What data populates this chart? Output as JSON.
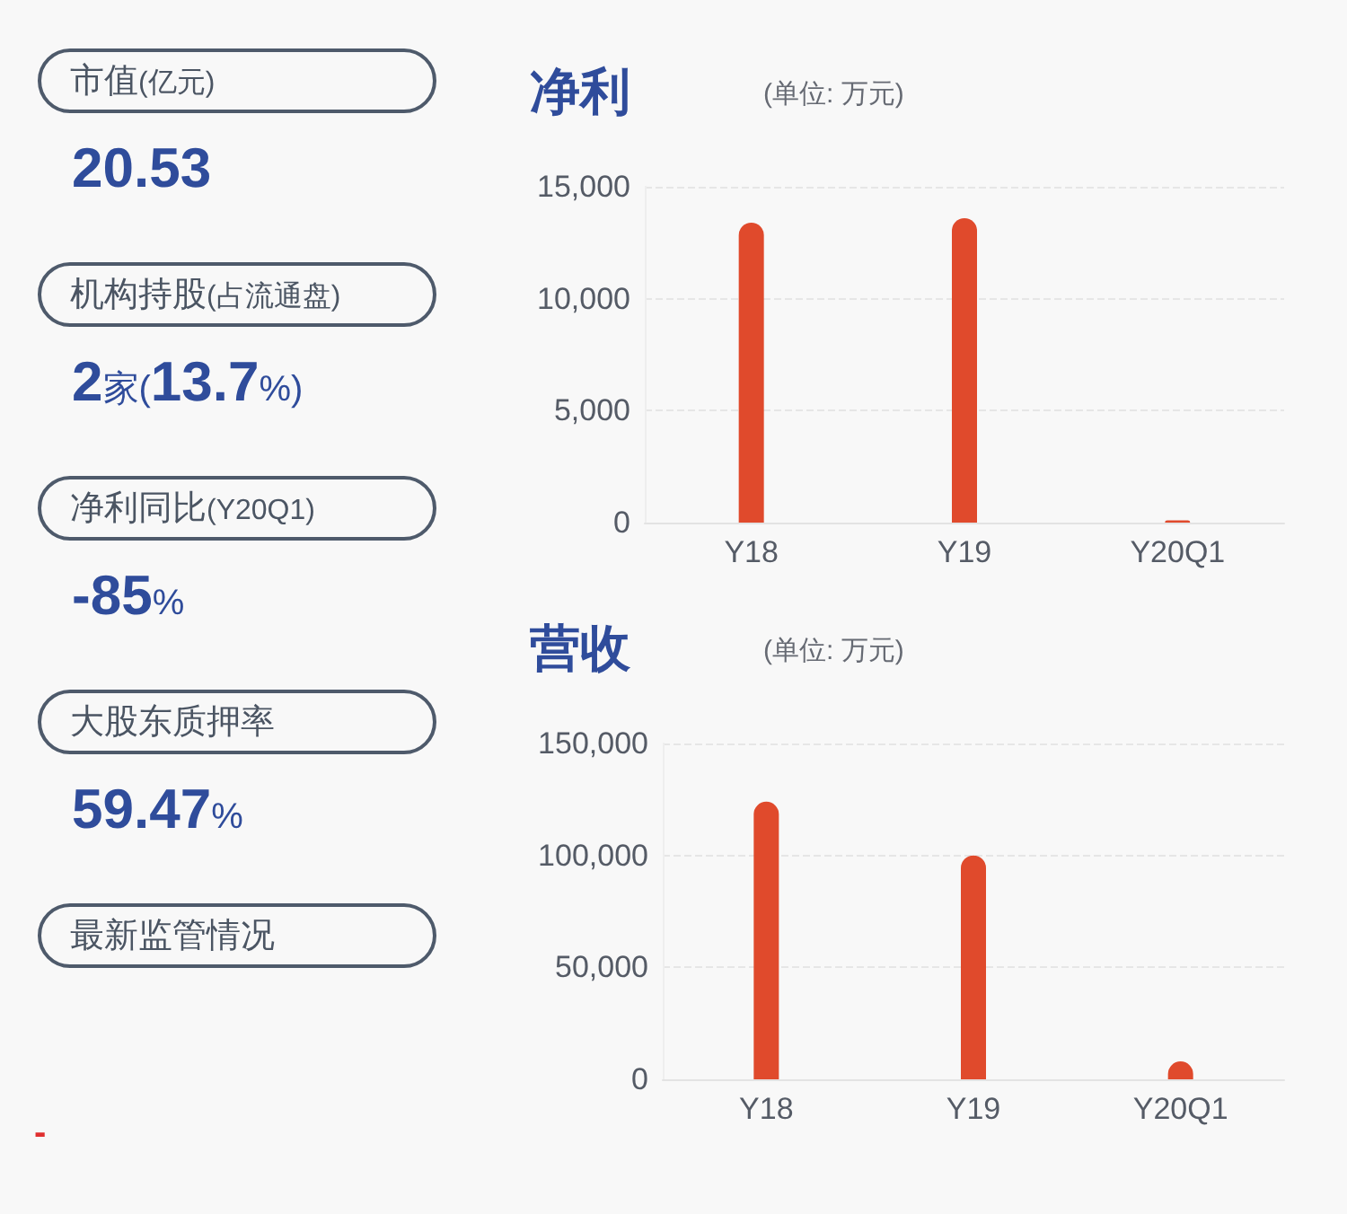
{
  "chart_data": [
    {
      "type": "other",
      "annotations": [
        "市值(亿元)",
        "20.53",
        "机构持股(占流通盘)",
        "2家(13.7%)",
        "净利同比(Y20Q1)",
        "-85%",
        "大股东质押率",
        "59.47%",
        "最新监管情况",
        "-"
      ]
    },
    {
      "type": "bar",
      "title": "净利",
      "subtitle": "(单位: 万元)",
      "categories": [
        "Y18",
        "Y19",
        "Y20Q1"
      ],
      "values": [
        13400,
        13600,
        100
      ],
      "color": "#e04a2c",
      "ylim": [
        0,
        15000
      ],
      "yticks": [
        0,
        {
          "value": 5000,
          "label": "5,000"
        },
        {
          "value": 10000,
          "label": "10,000"
        },
        {
          "value": 15000,
          "label": "15,000"
        }
      ],
      "grid": "y"
    },
    {
      "type": "bar",
      "title": "营收",
      "subtitle": "(单位: 万元)",
      "categories": [
        "Y18",
        "Y19",
        "Y20Q1"
      ],
      "values": [
        124000,
        100000,
        8000
      ],
      "color": "#e04a2c",
      "ylim": [
        0,
        150000
      ],
      "yticks": [
        0,
        {
          "value": 50000,
          "label": "50,000"
        },
        {
          "value": 100000,
          "label": "100,000"
        },
        {
          "value": 150000,
          "label": "150,000"
        }
      ],
      "grid": "y"
    }
  ]
}
